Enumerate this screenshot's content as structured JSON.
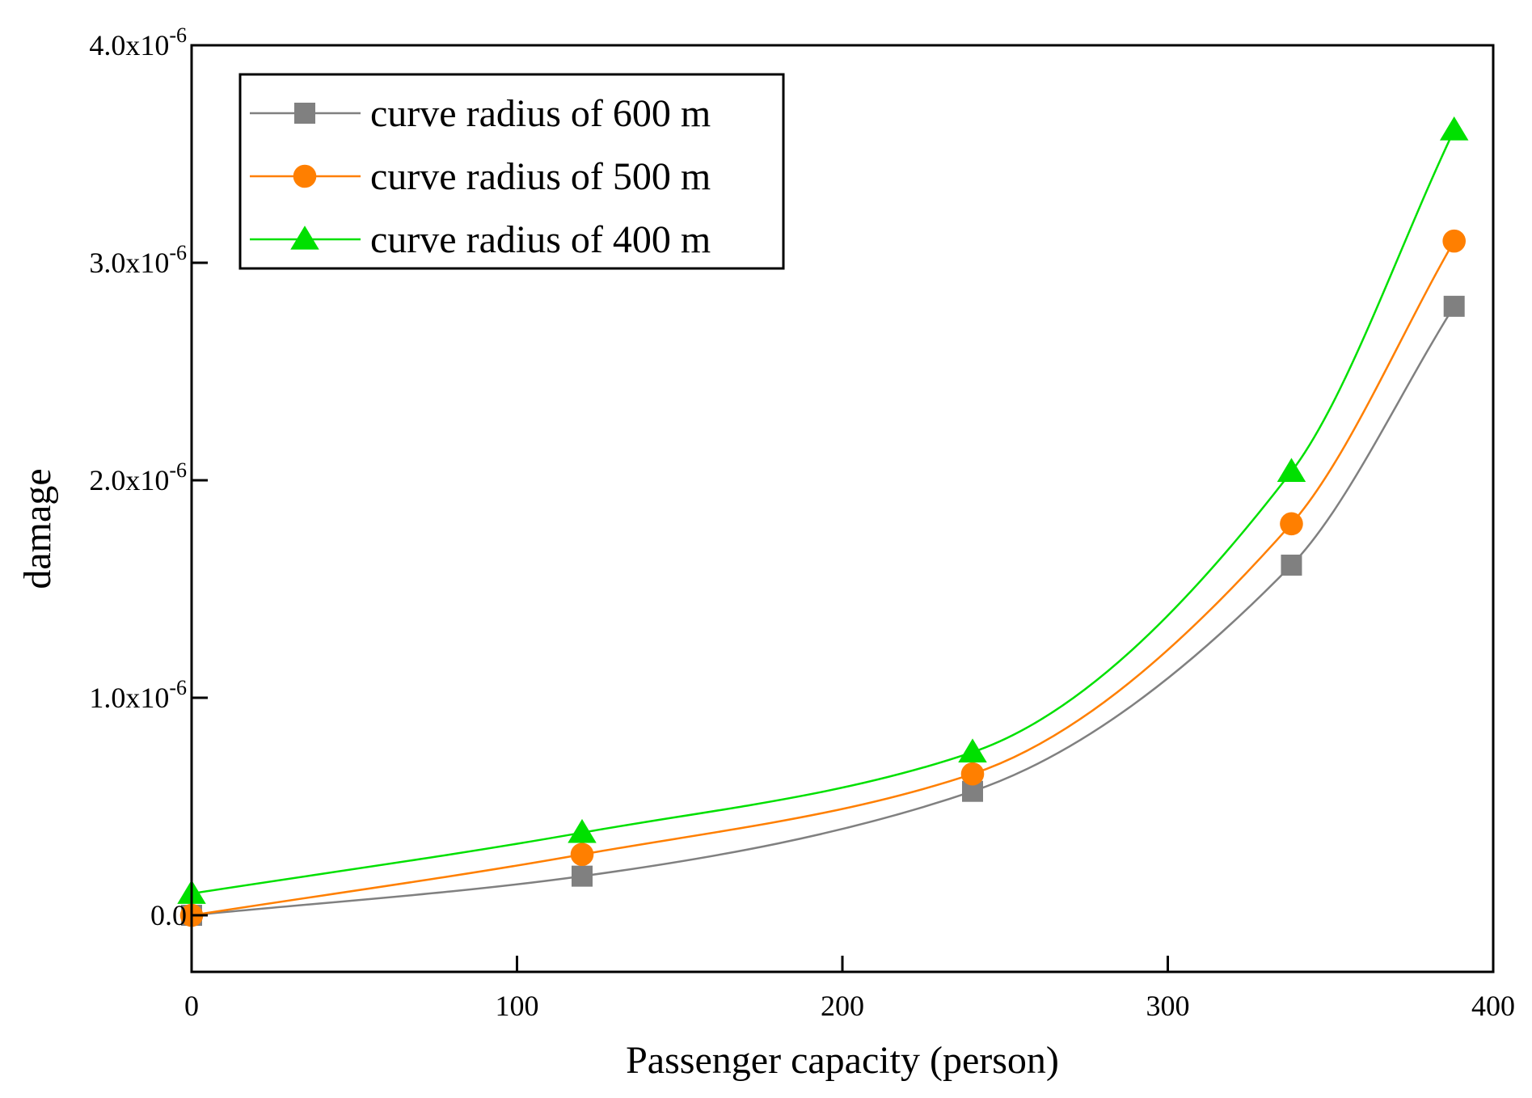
{
  "chart_data": {
    "type": "line",
    "title": "",
    "xlabel": "Passenger capacity (person)",
    "ylabel": "damage",
    "xlim": [
      0,
      400
    ],
    "ylim": [
      -2.6e-07,
      4e-06
    ],
    "x_ticks": [
      {
        "value": 0,
        "label": "0"
      },
      {
        "value": 100,
        "label": "100"
      },
      {
        "value": 200,
        "label": "200"
      },
      {
        "value": 300,
        "label": "300"
      },
      {
        "value": 400,
        "label": "400"
      }
    ],
    "y_ticks": [
      {
        "value": 0,
        "mantissa": "0.0",
        "exponent": ""
      },
      {
        "value": 1e-06,
        "mantissa": "1.0x10",
        "exponent": "-6"
      },
      {
        "value": 2e-06,
        "mantissa": "2.0x10",
        "exponent": "-6"
      },
      {
        "value": 3e-06,
        "mantissa": "3.0x10",
        "exponent": "-6"
      },
      {
        "value": 4e-06,
        "mantissa": "4.0x10",
        "exponent": "-6"
      }
    ],
    "x": [
      0,
      120,
      240,
      338,
      388
    ],
    "series": [
      {
        "name": "curve radius of 600 m",
        "color": "#808080",
        "marker": "square",
        "values": [
          0.0,
          1.8e-07,
          5.7e-07,
          1.61e-06,
          2.8e-06
        ]
      },
      {
        "name": "curve radius of 500 m",
        "color": "#ff7f00",
        "marker": "circle",
        "values": [
          0.0,
          2.8e-07,
          6.5e-07,
          1.8e-06,
          3.1e-06
        ]
      },
      {
        "name": "curve radius of 400 m",
        "color": "#00e000",
        "marker": "triangle",
        "values": [
          1e-07,
          3.8e-07,
          7.5e-07,
          2.04e-06,
          3.61e-06
        ]
      }
    ],
    "grid": false,
    "legend_position": "top-left"
  }
}
